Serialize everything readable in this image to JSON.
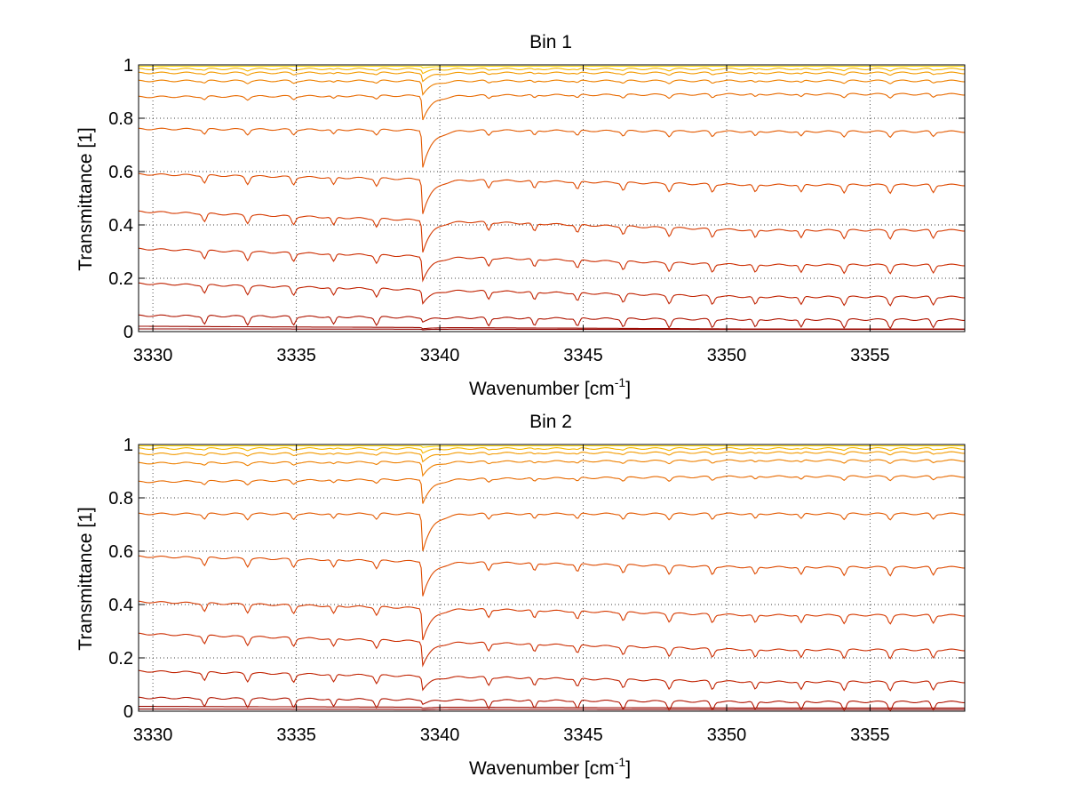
{
  "chart_data": [
    {
      "type": "line",
      "title": "Bin 1",
      "xlabel": "Wavenumber [cm",
      "xlabel_superscript": "-1",
      "xlabel_close": "]",
      "ylabel": "Transmittance [1]",
      "xlim": [
        3329.5,
        3358.3
      ],
      "ylim": [
        0,
        1
      ],
      "xticks": [
        3330,
        3335,
        3340,
        3345,
        3350,
        3355
      ],
      "yticks": [
        0,
        0.2,
        0.4,
        0.6,
        0.8,
        1
      ],
      "ytick_labels": [
        "0",
        "0.2",
        "0.4",
        "0.6",
        "0.8",
        "1"
      ],
      "grid": true,
      "legend": "none",
      "main_dip_x": 3339.4,
      "secondary_dips_x": [
        3331.8,
        3333.3,
        3334.9,
        3336.3,
        3337.8,
        3341.7,
        3343.3,
        3344.8,
        3346.4,
        3348.0,
        3349.5,
        3351.0,
        3352.6,
        3354.1,
        3355.7,
        3357.2
      ],
      "series": [
        {
          "color": "#8b0000",
          "start": 0.01,
          "end": 0.008,
          "main_dip": 0.002
        },
        {
          "color": "#9c0a00",
          "start": 0.02,
          "end": 0.01,
          "main_dip": 0.005
        },
        {
          "color": "#b01500",
          "start": 0.06,
          "end": 0.045,
          "main_dip": 0.015
        },
        {
          "color": "#c02200",
          "start": 0.18,
          "end": 0.13,
          "main_dip": 0.05
        },
        {
          "color": "#cc2d00",
          "start": 0.31,
          "end": 0.25,
          "main_dip": 0.09
        },
        {
          "color": "#d63a00",
          "start": 0.45,
          "end": 0.38,
          "main_dip": 0.12
        },
        {
          "color": "#de4a00",
          "start": 0.59,
          "end": 0.55,
          "main_dip": 0.13
        },
        {
          "color": "#e35a00",
          "start": 0.76,
          "end": 0.75,
          "main_dip": 0.14
        },
        {
          "color": "#e86a00",
          "start": 0.88,
          "end": 0.89,
          "main_dip": 0.09
        },
        {
          "color": "#ee8000",
          "start": 0.94,
          "end": 0.94,
          "main_dip": 0.05
        },
        {
          "color": "#f39a00",
          "start": 0.97,
          "end": 0.97,
          "main_dip": 0.03
        },
        {
          "color": "#f8b800",
          "start": 0.985,
          "end": 0.985,
          "main_dip": 0.015
        },
        {
          "color": "#fcd800",
          "start": 0.995,
          "end": 0.995,
          "main_dip": 0.006
        },
        {
          "color": "#ffff00",
          "start": 1.0,
          "end": 1.0,
          "main_dip": 0.001
        },
        {
          "color": "#40d0c0",
          "start": 1.0,
          "end": 1.0,
          "main_dip": 0.0
        }
      ]
    },
    {
      "type": "line",
      "title": "Bin 2",
      "xlabel": "Wavenumber [cm",
      "xlabel_superscript": "-1",
      "xlabel_close": "]",
      "ylabel": "Transmittance [1]",
      "xlim": [
        3329.5,
        3358.3
      ],
      "ylim": [
        0,
        1
      ],
      "xticks": [
        3330,
        3335,
        3340,
        3345,
        3350,
        3355
      ],
      "yticks": [
        0,
        0.2,
        0.4,
        0.6,
        0.8,
        1
      ],
      "ytick_labels": [
        "0",
        "0.2",
        "0.4",
        "0.6",
        "0.8",
        "1"
      ],
      "grid": true,
      "legend": "none",
      "main_dip_x": 3339.4,
      "secondary_dips_x": [
        3331.8,
        3333.3,
        3334.9,
        3336.3,
        3337.8,
        3341.7,
        3343.3,
        3344.8,
        3346.4,
        3348.0,
        3349.5,
        3351.0,
        3352.6,
        3354.1,
        3355.7,
        3357.2
      ],
      "series": [
        {
          "color": "#8b0000",
          "start": 0.008,
          "end": 0.006,
          "main_dip": 0.002
        },
        {
          "color": "#9c0a00",
          "start": 0.018,
          "end": 0.012,
          "main_dip": 0.004
        },
        {
          "color": "#b01500",
          "start": 0.05,
          "end": 0.035,
          "main_dip": 0.015
        },
        {
          "color": "#c02200",
          "start": 0.15,
          "end": 0.11,
          "main_dip": 0.05
        },
        {
          "color": "#cc2d00",
          "start": 0.29,
          "end": 0.23,
          "main_dip": 0.09
        },
        {
          "color": "#d63a00",
          "start": 0.41,
          "end": 0.36,
          "main_dip": 0.12
        },
        {
          "color": "#de4a00",
          "start": 0.58,
          "end": 0.54,
          "main_dip": 0.13
        },
        {
          "color": "#e35a00",
          "start": 0.74,
          "end": 0.74,
          "main_dip": 0.14
        },
        {
          "color": "#e86a00",
          "start": 0.86,
          "end": 0.88,
          "main_dip": 0.09
        },
        {
          "color": "#ee8000",
          "start": 0.93,
          "end": 0.94,
          "main_dip": 0.05
        },
        {
          "color": "#f39a00",
          "start": 0.965,
          "end": 0.97,
          "main_dip": 0.03
        },
        {
          "color": "#f8b800",
          "start": 0.985,
          "end": 0.985,
          "main_dip": 0.015
        },
        {
          "color": "#fcd800",
          "start": 0.995,
          "end": 0.995,
          "main_dip": 0.006
        },
        {
          "color": "#ffff00",
          "start": 1.0,
          "end": 1.0,
          "main_dip": 0.001
        },
        {
          "color": "#40d0c0",
          "start": 1.0,
          "end": 1.0,
          "main_dip": 0.0
        }
      ]
    }
  ]
}
